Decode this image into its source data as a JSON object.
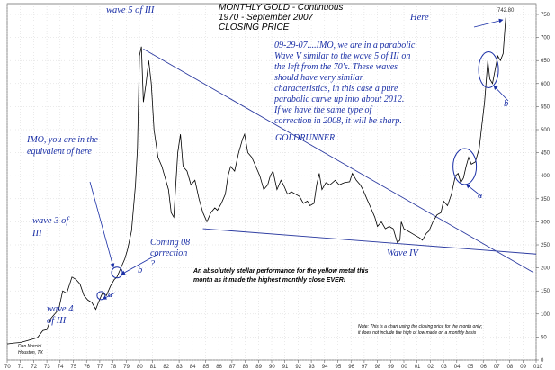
{
  "chart_data": {
    "type": "line",
    "title_lines": [
      "MONTHLY GOLD - Continuous",
      "1970 - September 2007",
      "CLOSING PRICE"
    ],
    "ylim": [
      0,
      750
    ],
    "y_ticks": [
      0,
      50,
      100,
      150,
      200,
      250,
      300,
      350,
      400,
      450,
      500,
      550,
      600,
      650,
      700,
      750
    ],
    "x_range": [
      1970,
      2010
    ],
    "x_ticks": [
      "70",
      "71",
      "72",
      "73",
      "74",
      "75",
      "76",
      "77",
      "78",
      "79",
      "80",
      "81",
      "82",
      "83",
      "84",
      "85",
      "86",
      "87",
      "88",
      "89",
      "90",
      "91",
      "92",
      "93",
      "94",
      "95",
      "96",
      "97",
      "98",
      "99",
      "00",
      "01",
      "02",
      "03",
      "04",
      "05",
      "06",
      "07",
      "08",
      "09",
      "010"
    ],
    "series": [
      {
        "points": [
          [
            1970.0,
            35
          ],
          [
            1970.5,
            37
          ],
          [
            1971.0,
            38
          ],
          [
            1971.5,
            42
          ],
          [
            1972.0,
            46
          ],
          [
            1972.3,
            49
          ],
          [
            1972.7,
            64
          ],
          [
            1973.0,
            66
          ],
          [
            1973.3,
            90
          ],
          [
            1973.6,
            100
          ],
          [
            1973.9,
            110
          ],
          [
            1974.2,
            150
          ],
          [
            1974.5,
            145
          ],
          [
            1974.9,
            180
          ],
          [
            1975.2,
            175
          ],
          [
            1975.5,
            165
          ],
          [
            1975.8,
            140
          ],
          [
            1976.1,
            130
          ],
          [
            1976.4,
            125
          ],
          [
            1976.7,
            110
          ],
          [
            1976.9,
            125
          ],
          [
            1977.2,
            145
          ],
          [
            1977.5,
            140
          ],
          [
            1977.8,
            160
          ],
          [
            1978.1,
            175
          ],
          [
            1978.3,
            180
          ],
          [
            1978.6,
            200
          ],
          [
            1978.9,
            220
          ],
          [
            1979.1,
            240
          ],
          [
            1979.4,
            280
          ],
          [
            1979.7,
            380
          ],
          [
            1979.85,
            460
          ],
          [
            1980.0,
            660
          ],
          [
            1980.15,
            680
          ],
          [
            1980.3,
            560
          ],
          [
            1980.5,
            600
          ],
          [
            1980.7,
            650
          ],
          [
            1980.9,
            600
          ],
          [
            1981.1,
            500
          ],
          [
            1981.4,
            440
          ],
          [
            1981.7,
            420
          ],
          [
            1981.9,
            400
          ],
          [
            1982.2,
            370
          ],
          [
            1982.4,
            320
          ],
          [
            1982.6,
            310
          ],
          [
            1982.9,
            450
          ],
          [
            1983.1,
            490
          ],
          [
            1983.3,
            420
          ],
          [
            1983.6,
            410
          ],
          [
            1983.9,
            380
          ],
          [
            1984.2,
            390
          ],
          [
            1984.5,
            350
          ],
          [
            1984.8,
            320
          ],
          [
            1985.1,
            300
          ],
          [
            1985.4,
            320
          ],
          [
            1985.7,
            330
          ],
          [
            1985.9,
            325
          ],
          [
            1986.2,
            340
          ],
          [
            1986.5,
            360
          ],
          [
            1986.7,
            400
          ],
          [
            1986.9,
            420
          ],
          [
            1987.2,
            410
          ],
          [
            1987.5,
            450
          ],
          [
            1987.8,
            480
          ],
          [
            1987.95,
            490
          ],
          [
            1988.2,
            450
          ],
          [
            1988.5,
            440
          ],
          [
            1988.8,
            420
          ],
          [
            1989.1,
            400
          ],
          [
            1989.4,
            370
          ],
          [
            1989.7,
            380
          ],
          [
            1989.9,
            400
          ],
          [
            1990.1,
            410
          ],
          [
            1990.4,
            370
          ],
          [
            1990.7,
            390
          ],
          [
            1990.9,
            380
          ],
          [
            1991.2,
            360
          ],
          [
            1991.5,
            365
          ],
          [
            1991.8,
            360
          ],
          [
            1992.1,
            355
          ],
          [
            1992.4,
            340
          ],
          [
            1992.7,
            345
          ],
          [
            1992.9,
            335
          ],
          [
            1993.2,
            340
          ],
          [
            1993.4,
            380
          ],
          [
            1993.6,
            405
          ],
          [
            1993.8,
            370
          ],
          [
            1994.1,
            385
          ],
          [
            1994.4,
            380
          ],
          [
            1994.8,
            390
          ],
          [
            1995.1,
            380
          ],
          [
            1995.5,
            385
          ],
          [
            1995.9,
            387
          ],
          [
            1996.1,
            405
          ],
          [
            1996.4,
            390
          ],
          [
            1996.7,
            380
          ],
          [
            1996.9,
            370
          ],
          [
            1997.2,
            350
          ],
          [
            1997.5,
            330
          ],
          [
            1997.8,
            310
          ],
          [
            1998.0,
            290
          ],
          [
            1998.3,
            300
          ],
          [
            1998.6,
            285
          ],
          [
            1998.9,
            290
          ],
          [
            1999.2,
            285
          ],
          [
            1999.5,
            255
          ],
          [
            1999.7,
            260
          ],
          [
            1999.8,
            300
          ],
          [
            2000.0,
            285
          ],
          [
            2000.3,
            280
          ],
          [
            2000.6,
            275
          ],
          [
            2000.9,
            270
          ],
          [
            2001.2,
            265
          ],
          [
            2001.4,
            260
          ],
          [
            2001.7,
            275
          ],
          [
            2001.9,
            280
          ],
          [
            2002.2,
            300
          ],
          [
            2002.5,
            315
          ],
          [
            2002.8,
            320
          ],
          [
            2003.0,
            345
          ],
          [
            2003.3,
            335
          ],
          [
            2003.6,
            360
          ],
          [
            2003.9,
            400
          ],
          [
            2004.1,
            405
          ],
          [
            2004.3,
            385
          ],
          [
            2004.5,
            395
          ],
          [
            2004.7,
            420
          ],
          [
            2004.9,
            440
          ],
          [
            2005.1,
            425
          ],
          [
            2005.4,
            430
          ],
          [
            2005.7,
            460
          ],
          [
            2005.9,
            510
          ],
          [
            2006.1,
            560
          ],
          [
            2006.35,
            650
          ],
          [
            2006.5,
            610
          ],
          [
            2006.7,
            600
          ],
          [
            2006.9,
            630
          ],
          [
            2007.1,
            660
          ],
          [
            2007.3,
            650
          ],
          [
            2007.5,
            665
          ],
          [
            2007.7,
            742.8
          ]
        ]
      }
    ],
    "last_value_label": "742.80",
    "lines": [
      {
        "from": [
          1980.3,
          675
        ],
        "to": [
          2009.8,
          190
        ]
      },
      {
        "from": [
          1984.8,
          285
        ],
        "to": [
          2010.0,
          230
        ]
      }
    ],
    "annotations": {
      "wave5": "wave 5 of III",
      "here": "Here",
      "imo_lines": [
        "IMO, you are in the",
        "equivalent of here"
      ],
      "wave3_lines": [
        "wave 3 of",
        "III"
      ],
      "wave4_lines": [
        "wave 4",
        "of III"
      ],
      "a_left": "a",
      "b_left": "b",
      "coming_lines": [
        "Coming 08",
        "correction",
        "?"
      ],
      "commentary_lines": [
        "09-29-07....IMO, we are in a parabolic",
        "Wave V similar to the wave 5 of III on",
        "the left from the 70's.  These waves",
        "should have very similar",
        "characteristics, in this case a pure",
        "parabolic curve up into about 2012.",
        "If we have the same type of",
        "correction in 2008, it will be sharp."
      ],
      "goldrunner": "GOLDRUNNER",
      "wave_iv": "Wave IV",
      "a_right": "a",
      "b_right": "b",
      "stellar_lines": [
        "An absolutely stellar performance for the yellow metal this",
        "month as it made the highest monthly close EVER!"
      ],
      "note_lines": [
        "Note: This is a chart using the closing price for the month only;",
        "it does not include the high or low made on a monthly basis"
      ],
      "author_lines": [
        "Dan Norcini",
        "Houston, TX"
      ]
    },
    "colors": {
      "line": "#000000",
      "annotation": "#1a2fa6",
      "grid": "#cccccc"
    }
  }
}
